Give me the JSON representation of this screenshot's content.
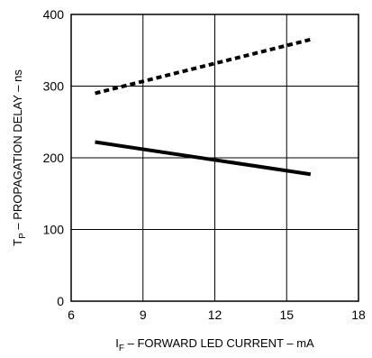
{
  "chart_data": {
    "type": "line",
    "title": "",
    "xlabel": "I_F – FORWARD LED CURRENT – mA",
    "xlabel_parts": {
      "main": "I",
      "sub": "F",
      "rest": " – FORWARD LED CURRENT – mA"
    },
    "ylabel": "T_P – PROPAGATION DELAY – ns",
    "ylabel_parts": {
      "main": "T",
      "sub": "P",
      "rest": " – PROPAGATION DELAY – ns"
    },
    "xlim": [
      6,
      18
    ],
    "ylim": [
      0,
      400
    ],
    "xticks": [
      6,
      9,
      12,
      15,
      18
    ],
    "yticks": [
      0,
      100,
      200,
      300,
      400
    ],
    "grid": true,
    "series": [
      {
        "style": "dashed",
        "x": [
          7,
          16
        ],
        "y": [
          290,
          365
        ]
      },
      {
        "style": "solid",
        "x": [
          7,
          16
        ],
        "y": [
          222,
          177
        ]
      }
    ]
  }
}
